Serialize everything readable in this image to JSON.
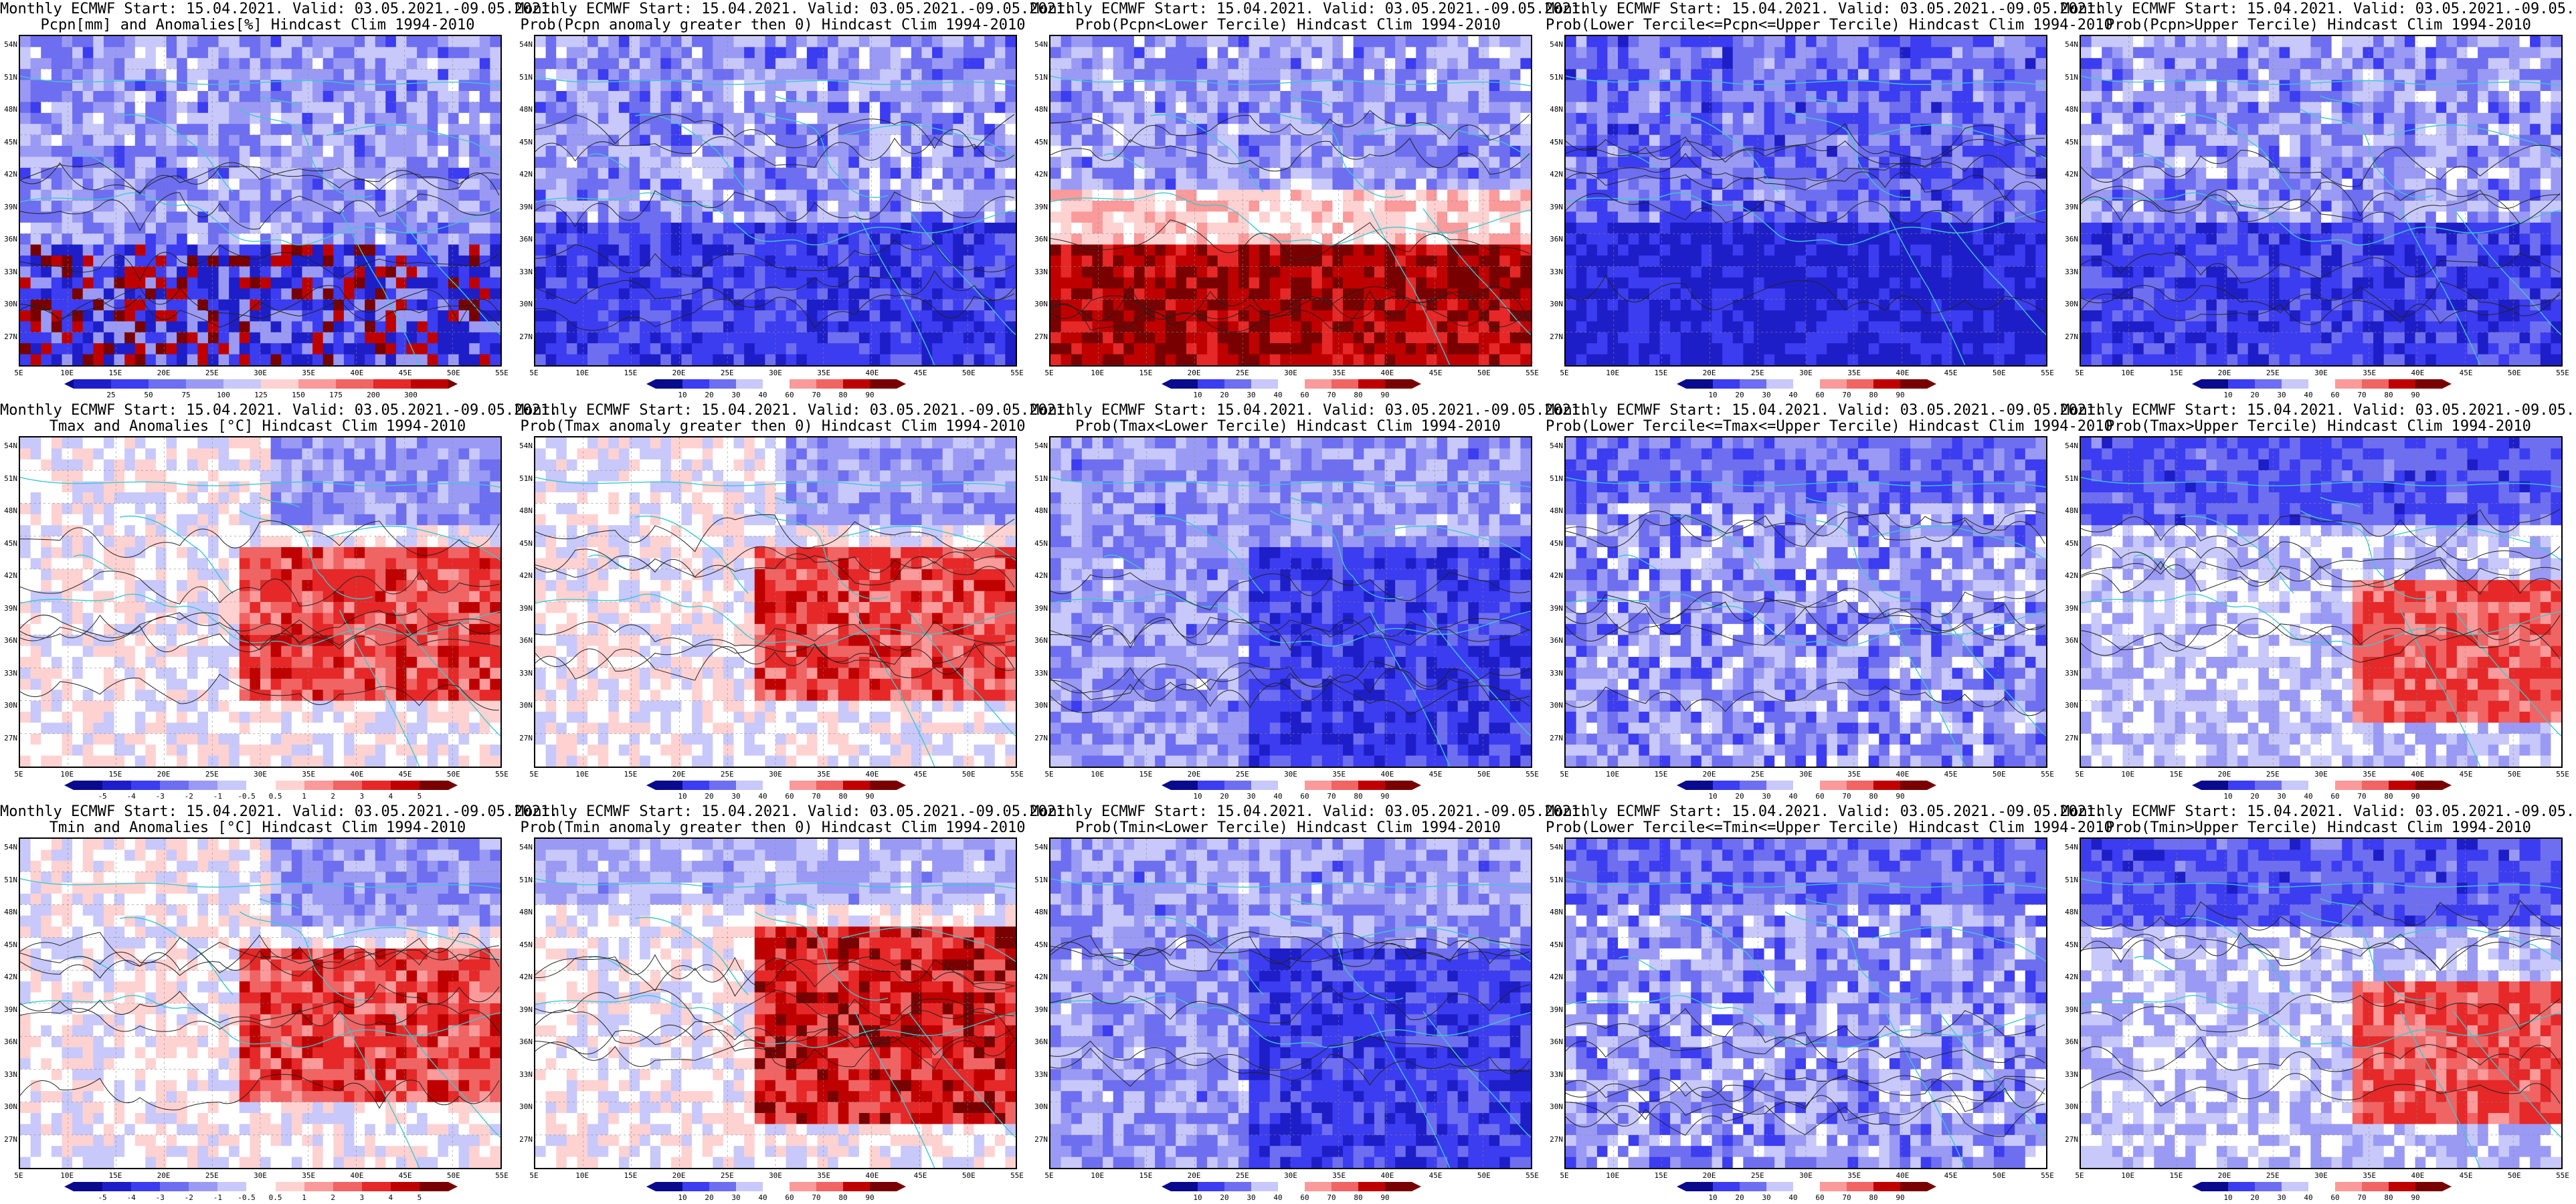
{
  "titles": {
    "line1": "Monthly ECMWF Start: 15.04.2021. Valid: 03.05.2021.-09.05.2021.",
    "rows": [
      [
        "Pcpn[mm] and Anomalies[%] Hindcast Clim 1994-2010",
        "Prob(Pcpn anomaly greater then 0) Hindcast Clim 1994-2010",
        "Prob(Pcpn<Lower Tercile) Hindcast Clim 1994-2010",
        "Prob(Lower Tercile<=Pcpn<=Upper Tercile) Hindcast Clim 1994-2010",
        "Prob(Pcpn>Upper Tercile) Hindcast Clim 1994-2010"
      ],
      [
        "Tmax and Anomalies [°C] Hindcast Clim 1994-2010",
        "Prob(Tmax anomaly greater then 0) Hindcast Clim 1994-2010",
        "Prob(Tmax<Lower Tercile) Hindcast Clim 1994-2010",
        "Prob(Lower Tercile<=Tmax<=Upper Tercile) Hindcast Clim 1994-2010",
        "Prob(Tmax>Upper Tercile) Hindcast Clim 1994-2010"
      ],
      [
        "Tmin and Anomalies [°C] Hindcast Clim 1994-2010",
        "Prob(Tmin anomaly greater then 0) Hindcast Clim 1994-2010",
        "Prob(Tmin<Lower Tercile) Hindcast Clim 1994-2010",
        "Prob(Lower Tercile<=Tmin<=Upper Tercile) Hindcast Clim 1994-2010",
        "Prob(Tmin>Upper Tercile) Hindcast Clim 1994-2010"
      ]
    ]
  },
  "lat_labels": [
    "54N",
    "51N",
    "48N",
    "45N",
    "42N",
    "39N",
    "36N",
    "33N",
    "30N",
    "27N"
  ],
  "lon_labels": [
    "5E",
    "10E",
    "15E",
    "20E",
    "25E",
    "30E",
    "35E",
    "40E",
    "45E",
    "50E",
    "55E"
  ],
  "colorbars": {
    "pcpn_anom": [
      "25",
      "50",
      "75",
      "100",
      "125",
      "150",
      "175",
      "200",
      "300"
    ],
    "temp_anom": [
      "-5",
      "-4",
      "-3",
      "-2",
      "-1",
      "-0.5",
      "0.5",
      "1",
      "2",
      "3",
      "4",
      "5"
    ],
    "prob": [
      "10",
      "20",
      "30",
      "40",
      "60",
      "70",
      "80",
      "90"
    ]
  },
  "colors": {
    "coast": "#3cc8d2",
    "contour": "#222222",
    "ramp_blue_to_red": [
      "#0a0a8c",
      "#1e1ec8",
      "#3c3cf0",
      "#6e6ef0",
      "#9a9af5",
      "#c8c8fa",
      "#ffffff",
      "#ffd2d2",
      "#fa9a9a",
      "#f06464",
      "#e62828",
      "#be0000",
      "#780000"
    ]
  }
}
